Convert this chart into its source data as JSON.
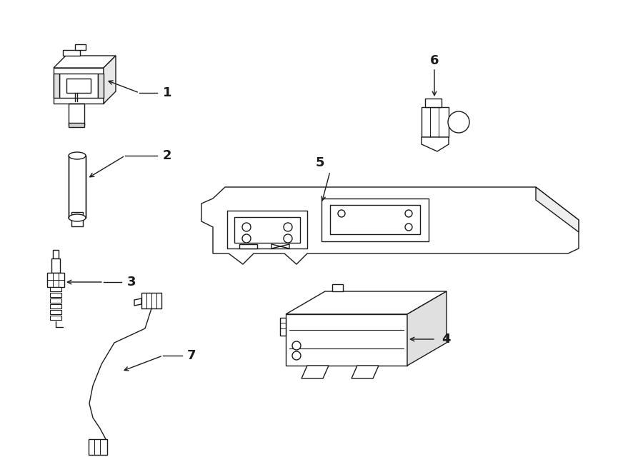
{
  "background_color": "#ffffff",
  "line_color": "#1a1a1a",
  "label_color": "#000000",
  "lw": 1.0
}
